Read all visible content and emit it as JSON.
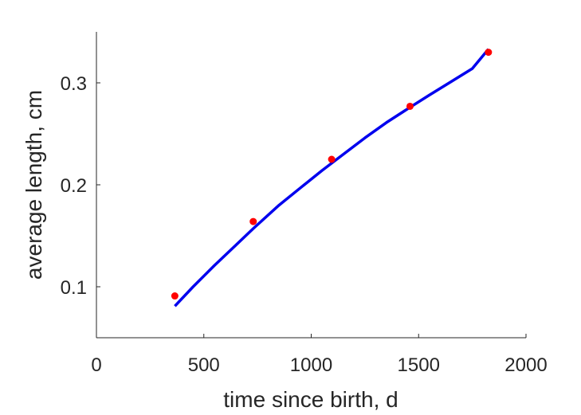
{
  "chart_data": {
    "type": "line",
    "title": "",
    "xlabel": "time since birth, d",
    "ylabel": "average length, cm",
    "xlim": [
      0,
      2000
    ],
    "ylim": [
      0.05,
      0.35
    ],
    "xticks": [
      0,
      500,
      1000,
      1500,
      2000
    ],
    "xtick_labels": [
      "0",
      "500",
      "1000",
      "1500",
      "2000"
    ],
    "yticks": [
      0.1,
      0.2,
      0.3
    ],
    "ytick_labels": [
      "0.1",
      "0.2",
      "0.3"
    ],
    "grid": false,
    "legend": "none",
    "series": [
      {
        "kind": "scatter",
        "color": "#ff0000",
        "x": [
          365,
          730,
          1095,
          1460,
          1825
        ],
        "y": [
          0.091,
          0.164,
          0.225,
          0.277,
          0.33
        ]
      },
      {
        "kind": "line",
        "color": "#0000ee",
        "x": [
          365,
          450,
          550,
          650,
          730,
          850,
          950,
          1050,
          1150,
          1250,
          1350,
          1460,
          1550,
          1650,
          1750,
          1825
        ],
        "y": [
          0.081,
          0.1,
          0.121,
          0.141,
          0.157,
          0.18,
          0.197,
          0.214,
          0.23,
          0.246,
          0.261,
          0.276,
          0.288,
          0.301,
          0.314,
          0.333
        ]
      }
    ]
  }
}
